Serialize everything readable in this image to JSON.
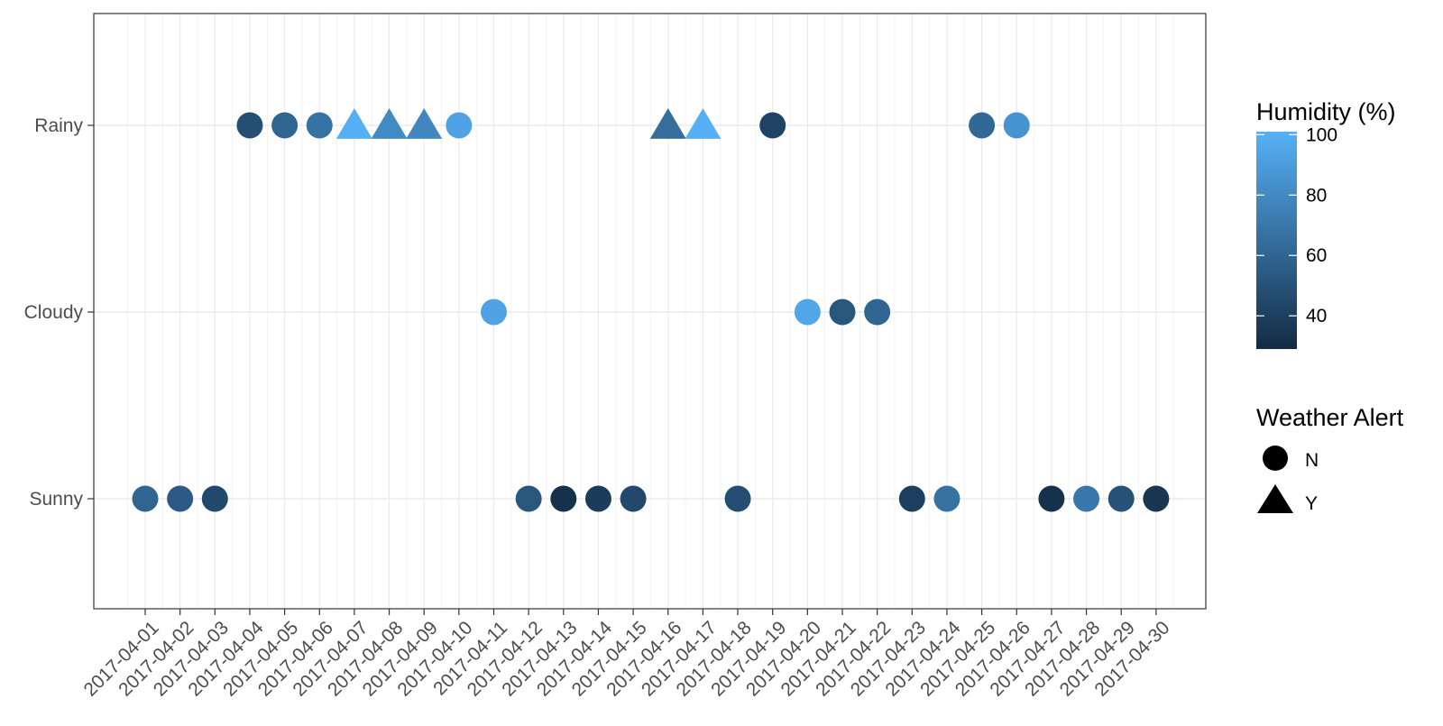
{
  "chart_data": {
    "type": "scatter",
    "x_type": "date",
    "x": [
      "2017-04-01",
      "2017-04-02",
      "2017-04-03",
      "2017-04-04",
      "2017-04-05",
      "2017-04-06",
      "2017-04-07",
      "2017-04-08",
      "2017-04-09",
      "2017-04-10",
      "2017-04-11",
      "2017-04-12",
      "2017-04-13",
      "2017-04-14",
      "2017-04-15",
      "2017-04-16",
      "2017-04-17",
      "2017-04-18",
      "2017-04-19",
      "2017-04-20",
      "2017-04-21",
      "2017-04-22",
      "2017-04-23",
      "2017-04-24",
      "2017-04-25",
      "2017-04-26",
      "2017-04-27",
      "2017-04-28",
      "2017-04-29",
      "2017-04-30"
    ],
    "y_categories": [
      "Rainy",
      "Cloudy",
      "Sunny"
    ],
    "points": [
      {
        "date": "2017-04-01",
        "weather": "Sunny",
        "humidity": 60,
        "alert": "N"
      },
      {
        "date": "2017-04-02",
        "weather": "Sunny",
        "humidity": 55,
        "alert": "N"
      },
      {
        "date": "2017-04-03",
        "weather": "Sunny",
        "humidity": 45,
        "alert": "N"
      },
      {
        "date": "2017-04-04",
        "weather": "Rainy",
        "humidity": 48,
        "alert": "N"
      },
      {
        "date": "2017-04-05",
        "weather": "Rainy",
        "humidity": 60,
        "alert": "N"
      },
      {
        "date": "2017-04-06",
        "weather": "Rainy",
        "humidity": 67,
        "alert": "N"
      },
      {
        "date": "2017-04-07",
        "weather": "Rainy",
        "humidity": 100,
        "alert": "Y"
      },
      {
        "date": "2017-04-08",
        "weather": "Rainy",
        "humidity": 80,
        "alert": "Y"
      },
      {
        "date": "2017-04-09",
        "weather": "Rainy",
        "humidity": 78,
        "alert": "Y"
      },
      {
        "date": "2017-04-10",
        "weather": "Rainy",
        "humidity": 93,
        "alert": "N"
      },
      {
        "date": "2017-04-11",
        "weather": "Cloudy",
        "humidity": 93,
        "alert": "N"
      },
      {
        "date": "2017-04-12",
        "weather": "Sunny",
        "humidity": 52,
        "alert": "N"
      },
      {
        "date": "2017-04-13",
        "weather": "Sunny",
        "humidity": 32,
        "alert": "N"
      },
      {
        "date": "2017-04-14",
        "weather": "Sunny",
        "humidity": 38,
        "alert": "N"
      },
      {
        "date": "2017-04-15",
        "weather": "Sunny",
        "humidity": 45,
        "alert": "N"
      },
      {
        "date": "2017-04-16",
        "weather": "Rainy",
        "humidity": 65,
        "alert": "Y"
      },
      {
        "date": "2017-04-17",
        "weather": "Rainy",
        "humidity": 100,
        "alert": "Y"
      },
      {
        "date": "2017-04-18",
        "weather": "Sunny",
        "humidity": 48,
        "alert": "N"
      },
      {
        "date": "2017-04-19",
        "weather": "Rainy",
        "humidity": 42,
        "alert": "N"
      },
      {
        "date": "2017-04-20",
        "weather": "Cloudy",
        "humidity": 95,
        "alert": "N"
      },
      {
        "date": "2017-04-21",
        "weather": "Cloudy",
        "humidity": 52,
        "alert": "N"
      },
      {
        "date": "2017-04-22",
        "weather": "Cloudy",
        "humidity": 60,
        "alert": "N"
      },
      {
        "date": "2017-04-23",
        "weather": "Sunny",
        "humidity": 40,
        "alert": "N"
      },
      {
        "date": "2017-04-24",
        "weather": "Sunny",
        "humidity": 67,
        "alert": "N"
      },
      {
        "date": "2017-04-25",
        "weather": "Rainy",
        "humidity": 62,
        "alert": "N"
      },
      {
        "date": "2017-04-26",
        "weather": "Rainy",
        "humidity": 85,
        "alert": "N"
      },
      {
        "date": "2017-04-27",
        "weather": "Sunny",
        "humidity": 32,
        "alert": "N"
      },
      {
        "date": "2017-04-28",
        "weather": "Sunny",
        "humidity": 70,
        "alert": "N"
      },
      {
        "date": "2017-04-29",
        "weather": "Sunny",
        "humidity": 50,
        "alert": "N"
      },
      {
        "date": "2017-04-30",
        "weather": "Sunny",
        "humidity": 35,
        "alert": "N"
      }
    ],
    "color_scale": {
      "title": "Humidity (%)",
      "ticks": [
        40,
        60,
        80,
        100
      ],
      "range": [
        29,
        101
      ],
      "low_color": "#132b43",
      "high_color": "#56b1f7"
    },
    "shape_legend": {
      "title": "Weather Alert",
      "entries": [
        {
          "label": "N",
          "shape": "circle"
        },
        {
          "label": "Y",
          "shape": "triangle"
        }
      ]
    },
    "title": "",
    "xlabel": "",
    "ylabel": "",
    "grid": true,
    "legend_position": "right"
  }
}
